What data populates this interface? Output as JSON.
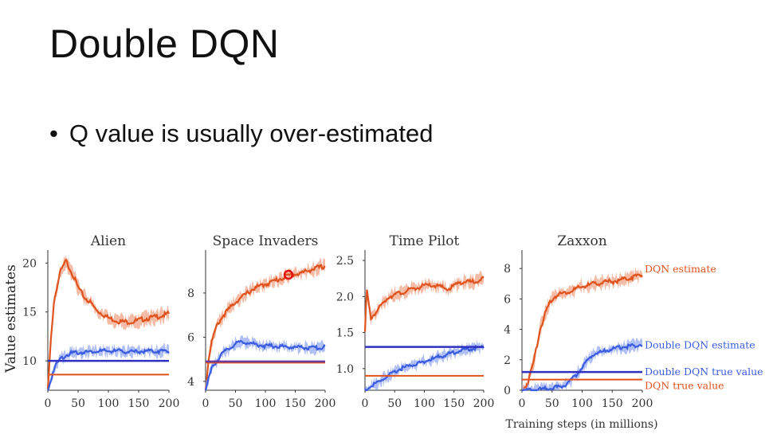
{
  "slide": {
    "title": "Double DQN",
    "bullet": "Q value is usually over-estimated"
  },
  "colors": {
    "dqn": "#e0521c",
    "dqn_light": "#f0a080",
    "double": "#3a5ce0",
    "double_light": "#8fa4ef",
    "double_true": "#3030c0",
    "purple_line": "#6a3aa0",
    "axis": "#333333"
  },
  "figure": {
    "ylabel": "Value estimates",
    "xlabel": "Training steps (in millions)"
  },
  "chart_data": [
    {
      "type": "line",
      "title": "Alien",
      "xlim": [
        0,
        200
      ],
      "ylim": [
        7,
        21
      ],
      "x_ticks": [
        0,
        50,
        100,
        150,
        200
      ],
      "y_ticks": [
        10,
        15,
        20
      ],
      "series": [
        {
          "role": "dqn_estimate",
          "x": [
            0,
            5,
            10,
            20,
            30,
            40,
            50,
            60,
            70,
            80,
            90,
            100,
            120,
            140,
            160,
            180,
            200
          ],
          "y": [
            7,
            12,
            16,
            19,
            20.2,
            19,
            17.5,
            16.5,
            16,
            15.2,
            14.8,
            14.4,
            14,
            14,
            14.3,
            14.5,
            14.8
          ]
        },
        {
          "role": "double_estimate",
          "x": [
            0,
            5,
            10,
            20,
            30,
            40,
            60,
            80,
            100,
            120,
            140,
            160,
            180,
            200
          ],
          "y": [
            7,
            8,
            9.2,
            10.2,
            10.6,
            10.8,
            10.9,
            11,
            11,
            11,
            10.9,
            11,
            11,
            11
          ]
        },
        {
          "role": "dqn_true",
          "value": 8.6
        },
        {
          "role": "double_true",
          "value": 10
        }
      ]
    },
    {
      "type": "line",
      "title": "Space Invaders",
      "xlim": [
        0,
        200
      ],
      "ylim": [
        3.6,
        9.8
      ],
      "x_ticks": [
        0,
        50,
        100,
        150,
        200
      ],
      "y_ticks": [
        4,
        6,
        8
      ],
      "series": [
        {
          "role": "dqn_estimate",
          "x": [
            0,
            5,
            10,
            20,
            30,
            40,
            50,
            60,
            80,
            100,
            120,
            140,
            160,
            180,
            200
          ],
          "y": [
            3.6,
            5,
            5.8,
            6.6,
            7,
            7.3,
            7.6,
            7.8,
            8.2,
            8.4,
            8.6,
            8.8,
            8.9,
            9.1,
            9.2
          ]
        },
        {
          "role": "double_estimate",
          "x": [
            0,
            5,
            10,
            20,
            30,
            40,
            50,
            60,
            70,
            80,
            100,
            120,
            140,
            160,
            180,
            200
          ],
          "y": [
            3.6,
            4.1,
            4.6,
            5,
            5.3,
            5.5,
            5.7,
            5.8,
            5.75,
            5.7,
            5.6,
            5.6,
            5.55,
            5.55,
            5.5,
            5.55
          ]
        },
        {
          "role": "dqn_true",
          "value": 4.85
        },
        {
          "role": "double_true",
          "value": 4.9
        }
      ]
    },
    {
      "type": "line",
      "title": "Time Pilot",
      "xlim": [
        0,
        200
      ],
      "ylim": [
        0.7,
        2.6
      ],
      "x_ticks": [
        0,
        50,
        100,
        150,
        200
      ],
      "y_ticks": [
        1.0,
        1.5,
        2.0,
        2.5
      ],
      "series": [
        {
          "role": "dqn_estimate",
          "x": [
            0,
            3,
            6,
            10,
            20,
            30,
            40,
            60,
            80,
            100,
            120,
            140,
            160,
            180,
            200
          ],
          "y": [
            1.5,
            2.1,
            1.9,
            1.7,
            1.8,
            1.9,
            2.0,
            2.05,
            2.1,
            2.15,
            2.15,
            2.1,
            2.2,
            2.2,
            2.25
          ]
        },
        {
          "role": "double_estimate",
          "x": [
            0,
            10,
            20,
            30,
            40,
            50,
            60,
            80,
            100,
            120,
            140,
            160,
            180,
            200
          ],
          "y": [
            0.7,
            0.75,
            0.8,
            0.85,
            0.9,
            0.95,
            1.0,
            1.05,
            1.1,
            1.15,
            1.2,
            1.25,
            1.28,
            1.3
          ]
        },
        {
          "role": "dqn_true",
          "value": 0.9
        },
        {
          "role": "double_true",
          "value": 1.3
        }
      ]
    },
    {
      "type": "line",
      "title": "Zaxxon",
      "xlim": [
        0,
        200
      ],
      "ylim": [
        0,
        9
      ],
      "x_ticks": [
        0,
        50,
        100,
        150,
        200
      ],
      "y_ticks": [
        0,
        2,
        4,
        6,
        8
      ],
      "series": [
        {
          "role": "dqn_estimate",
          "label": "DQN estimate",
          "x": [
            0,
            10,
            20,
            30,
            40,
            50,
            60,
            80,
            100,
            120,
            140,
            160,
            180,
            200
          ],
          "y": [
            0,
            0.5,
            2,
            4,
            5.2,
            6,
            6.3,
            6.5,
            6.8,
            7,
            7.1,
            7.2,
            7.4,
            7.6
          ]
        },
        {
          "role": "double_estimate",
          "label": "Double DQN estimate",
          "x": [
            0,
            20,
            40,
            60,
            70,
            80,
            90,
            100,
            110,
            120,
            140,
            160,
            180,
            200
          ],
          "y": [
            0,
            0,
            0.1,
            0.2,
            0.3,
            0.6,
            1.0,
            1.5,
            2.0,
            2.4,
            2.6,
            2.8,
            2.9,
            3.0
          ]
        },
        {
          "role": "double_true",
          "label": "Double DQN true value",
          "value": 1.2
        },
        {
          "role": "dqn_true",
          "label": "DQN true value",
          "value": 0.7
        }
      ]
    }
  ]
}
